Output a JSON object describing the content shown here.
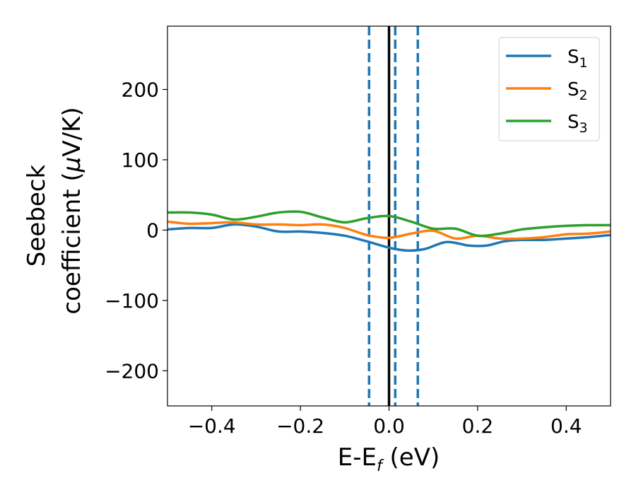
{
  "chart_data": {
    "type": "line",
    "xlabel": {
      "main": "E-E",
      "sub": "f",
      "unit": " (eV)"
    },
    "ylabel": {
      "line1": "Seebeck",
      "line2": "coefficient  (",
      "mu": "μ",
      "unit": "V/K)"
    },
    "xlim": [
      -0.5,
      0.5
    ],
    "ylim": [
      -250,
      290
    ],
    "x_ticks": [
      -0.4,
      -0.2,
      0.0,
      0.2,
      0.4
    ],
    "x_tick_labels": [
      "−0.4",
      "−0.2",
      "0.0",
      "0.2",
      "0.4"
    ],
    "y_ticks": [
      -200,
      -100,
      0,
      100,
      200
    ],
    "y_tick_labels": [
      "−200",
      "−100",
      "0",
      "100",
      "200"
    ],
    "grid": false,
    "legend_position": "top-right",
    "vertical_lines": [
      {
        "x": 0.0,
        "style": "solid",
        "color": "#000000"
      },
      {
        "x": -0.045,
        "style": "dashed",
        "color": "#1f77b4"
      },
      {
        "x": 0.014,
        "style": "dashed",
        "color": "#1f77b4"
      },
      {
        "x": 0.065,
        "style": "dashed",
        "color": "#1f77b4"
      }
    ],
    "series": [
      {
        "name": "S",
        "sub": "1",
        "color": "#1f77b4",
        "points": [
          [
            -0.5,
            1
          ],
          [
            -0.45,
            3
          ],
          [
            -0.4,
            3
          ],
          [
            -0.35,
            8
          ],
          [
            -0.3,
            5
          ],
          [
            -0.25,
            -2
          ],
          [
            -0.2,
            -2
          ],
          [
            -0.15,
            -4
          ],
          [
            -0.1,
            -8
          ],
          [
            -0.05,
            -16
          ],
          [
            0.0,
            -25
          ],
          [
            0.04,
            -29
          ],
          [
            0.08,
            -27
          ],
          [
            0.13,
            -17
          ],
          [
            0.18,
            -22
          ],
          [
            0.22,
            -22
          ],
          [
            0.26,
            -16
          ],
          [
            0.3,
            -14
          ],
          [
            0.35,
            -14
          ],
          [
            0.4,
            -12
          ],
          [
            0.45,
            -10
          ],
          [
            0.5,
            -7
          ]
        ]
      },
      {
        "name": "S",
        "sub": "2",
        "color": "#ff7f0e",
        "points": [
          [
            -0.5,
            12
          ],
          [
            -0.45,
            9
          ],
          [
            -0.4,
            10
          ],
          [
            -0.35,
            11
          ],
          [
            -0.3,
            8
          ],
          [
            -0.25,
            8
          ],
          [
            -0.2,
            7
          ],
          [
            -0.15,
            8
          ],
          [
            -0.1,
            3
          ],
          [
            -0.05,
            -7
          ],
          [
            0.0,
            -11
          ],
          [
            0.05,
            -5
          ],
          [
            0.1,
            -1
          ],
          [
            0.15,
            -12
          ],
          [
            0.2,
            -8
          ],
          [
            0.25,
            -12
          ],
          [
            0.3,
            -12
          ],
          [
            0.35,
            -10
          ],
          [
            0.4,
            -6
          ],
          [
            0.45,
            -5
          ],
          [
            0.5,
            -2
          ]
        ]
      },
      {
        "name": "S",
        "sub": "3",
        "color": "#2ca02c",
        "points": [
          [
            -0.5,
            25
          ],
          [
            -0.45,
            25
          ],
          [
            -0.4,
            22
          ],
          [
            -0.35,
            15
          ],
          [
            -0.3,
            19
          ],
          [
            -0.25,
            25
          ],
          [
            -0.2,
            26
          ],
          [
            -0.15,
            18
          ],
          [
            -0.1,
            11
          ],
          [
            -0.05,
            17
          ],
          [
            0.0,
            20
          ],
          [
            0.05,
            12
          ],
          [
            0.1,
            2
          ],
          [
            0.15,
            2
          ],
          [
            0.2,
            -8
          ],
          [
            0.25,
            -5
          ],
          [
            0.3,
            1
          ],
          [
            0.35,
            4
          ],
          [
            0.4,
            6
          ],
          [
            0.45,
            7
          ],
          [
            0.5,
            7
          ]
        ]
      }
    ]
  }
}
